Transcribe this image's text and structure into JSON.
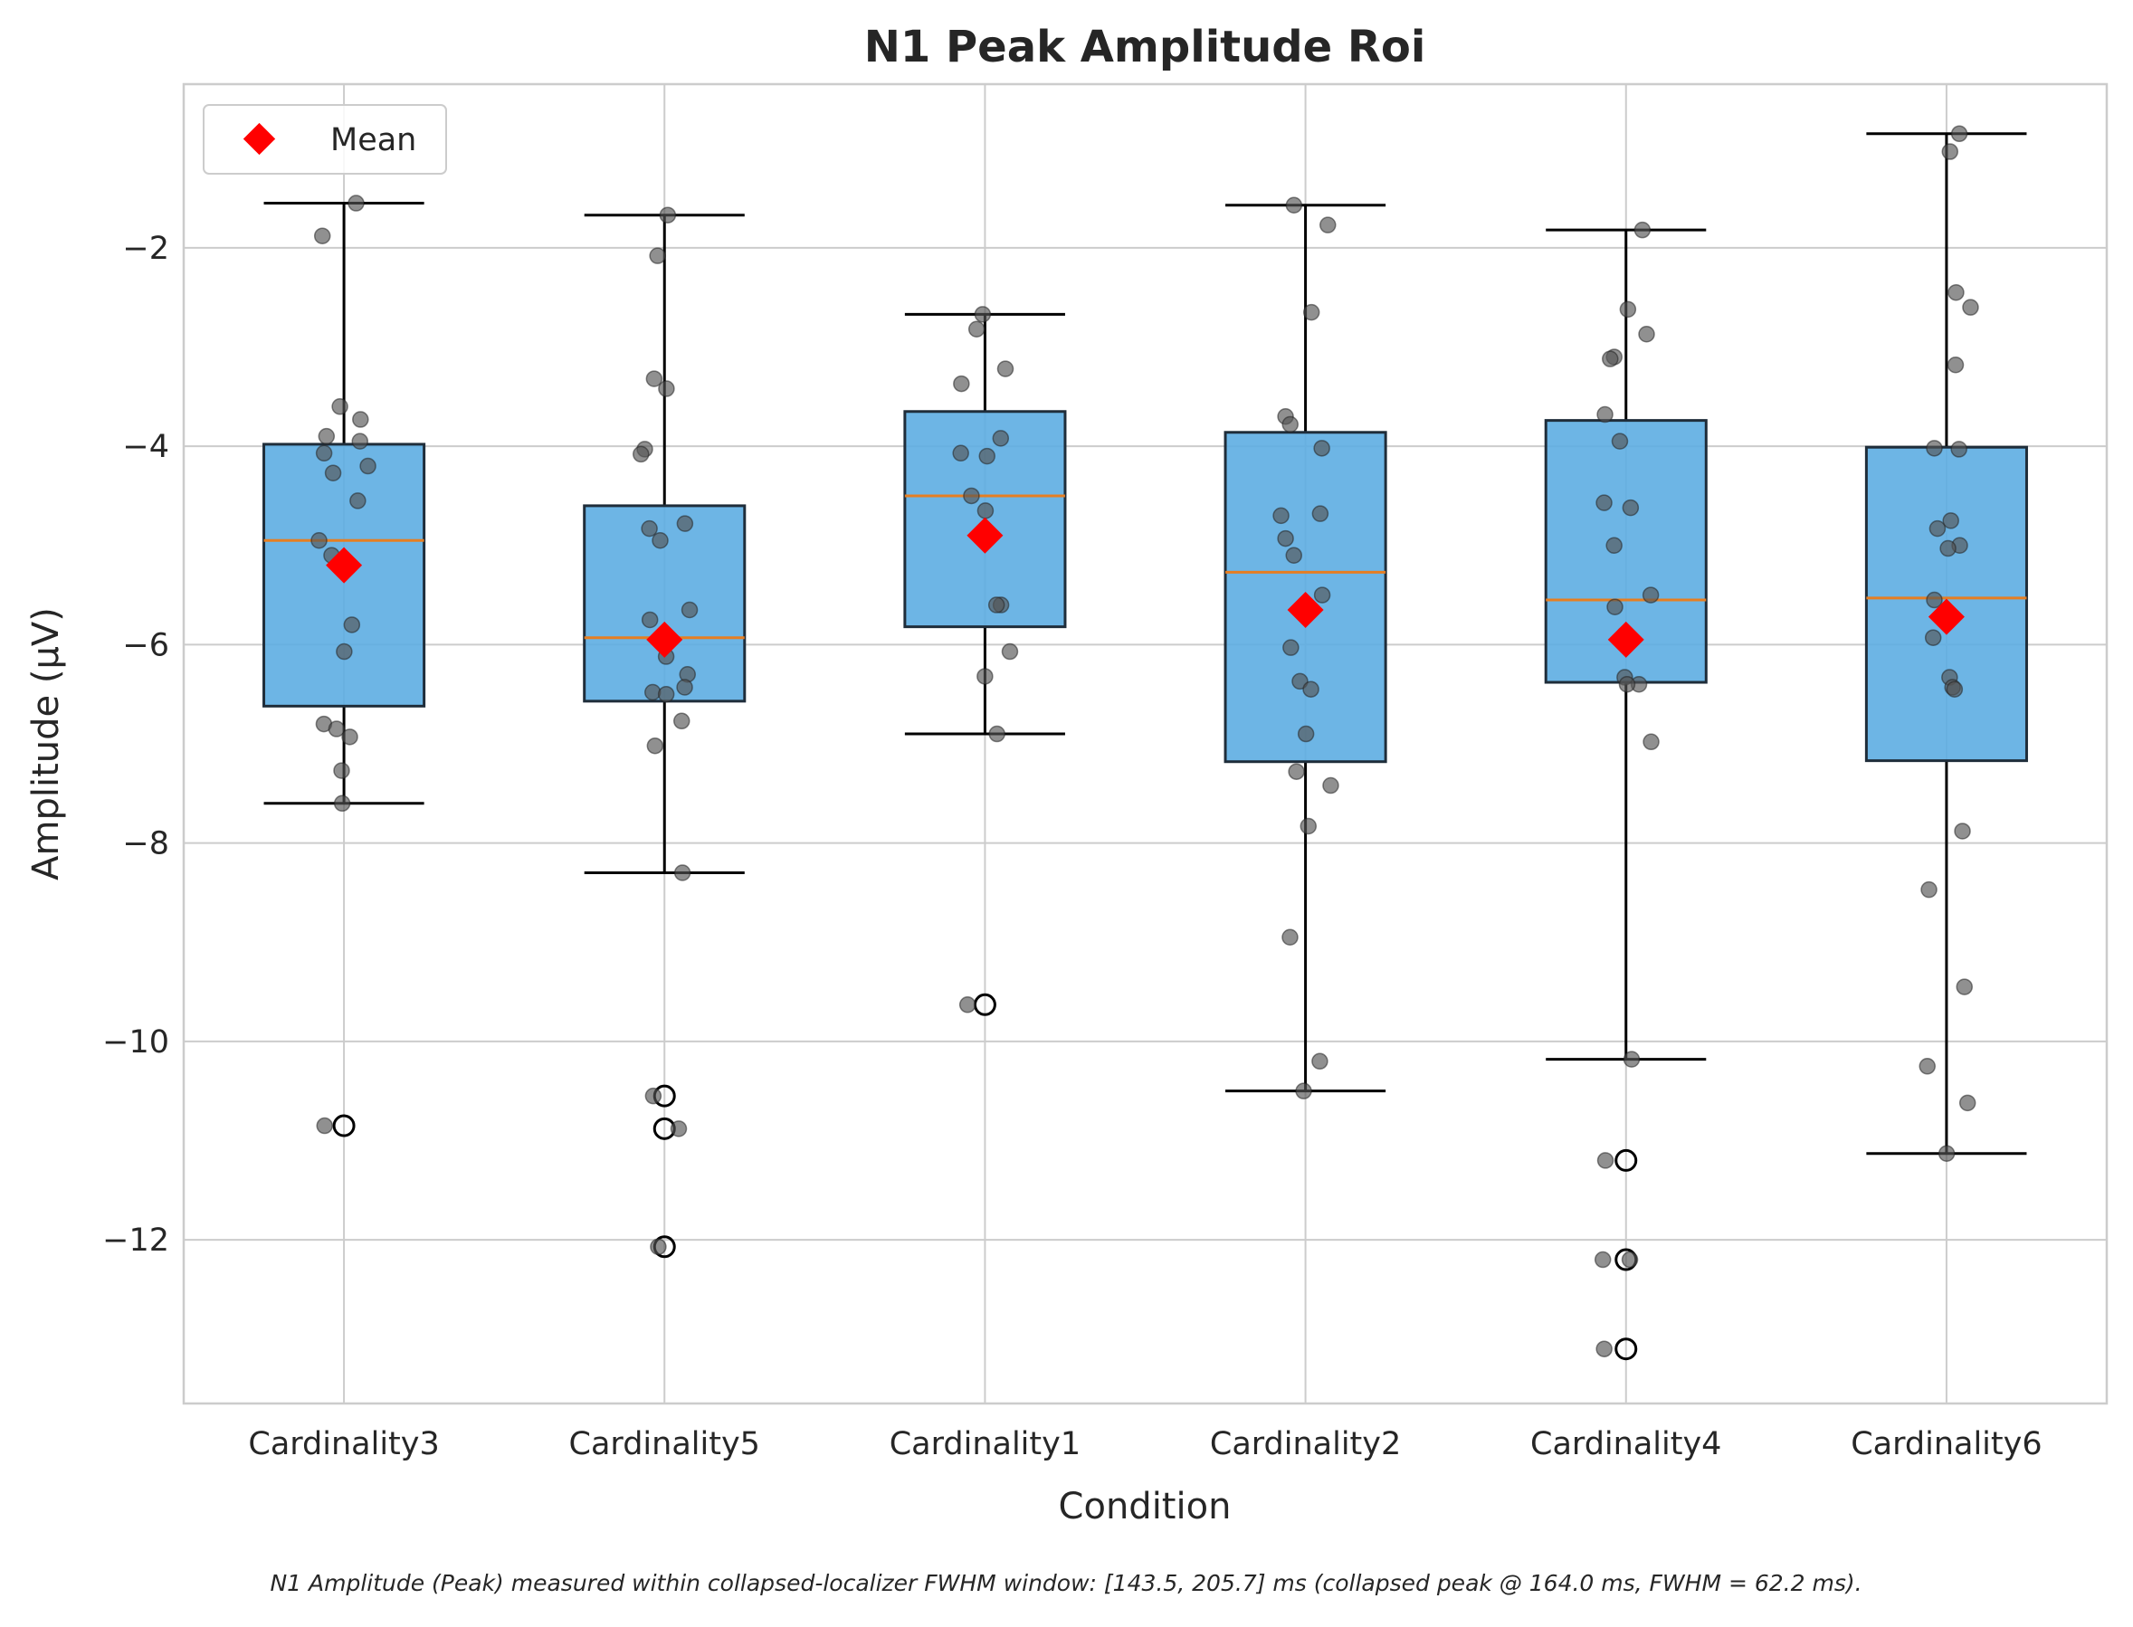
{
  "chart_data": {
    "type": "box",
    "title": "N1 Peak Amplitude Roi",
    "xlabel": "Condition",
    "ylabel": "Amplitude (µV)",
    "caption": "N1 Amplitude (Peak) measured within collapsed-localizer FWHM window: [143.5, 205.7] ms (collapsed peak @ 164.0 ms, FWHM = 62.2 ms).",
    "ylim": [
      -13.65,
      -0.35
    ],
    "yticks": [
      -2,
      -4,
      -6,
      -8,
      -10,
      -12
    ],
    "ytick_labels": [
      "−2",
      "−4",
      "−6",
      "−8",
      "−10",
      "−12"
    ],
    "grid": true,
    "legend": {
      "placement": "top-left",
      "entries": [
        "Mean"
      ]
    },
    "colors": {
      "box": "#5dade2",
      "median": "#e67e22",
      "mean": "#ff0000",
      "points": "#555555",
      "grid": "#cccccc",
      "axes": "#cccccc"
    },
    "categories": [
      "Cardinality3",
      "Cardinality5",
      "Cardinality1",
      "Cardinality2",
      "Cardinality4",
      "Cardinality6"
    ],
    "boxes": [
      {
        "q1": -6.62,
        "median": -4.95,
        "q3": -3.98,
        "whisker_low": -7.6,
        "whisker_high": -1.55,
        "mean": -5.2,
        "outliers": [
          -10.85
        ],
        "points": [
          -1.55,
          -1.88,
          -3.6,
          -3.73,
          -3.9,
          -3.95,
          -4.07,
          -4.2,
          -4.27,
          -4.55,
          -4.95,
          -5.1,
          -5.8,
          -6.07,
          -6.8,
          -6.85,
          -6.93,
          -7.27,
          -7.6,
          -10.85
        ]
      },
      {
        "q1": -6.57,
        "median": -5.93,
        "q3": -4.6,
        "whisker_low": -8.3,
        "whisker_high": -1.67,
        "mean": -5.95,
        "outliers": [
          -10.55,
          -10.88,
          -12.07
        ],
        "points": [
          -1.67,
          -2.08,
          -3.32,
          -3.42,
          -4.03,
          -4.08,
          -4.78,
          -4.83,
          -4.95,
          -5.65,
          -5.75,
          -6.12,
          -6.3,
          -6.43,
          -6.48,
          -6.5,
          -6.77,
          -7.02,
          -8.3,
          -10.55,
          -10.88,
          -12.07
        ]
      },
      {
        "q1": -5.82,
        "median": -4.5,
        "q3": -3.65,
        "whisker_low": -6.9,
        "whisker_high": -2.67,
        "mean": -4.9,
        "outliers": [
          -9.63
        ],
        "points": [
          -2.67,
          -2.82,
          -3.22,
          -3.37,
          -3.92,
          -4.07,
          -4.1,
          -4.5,
          -4.65,
          -5.6,
          -5.6,
          -6.07,
          -6.32,
          -6.9,
          -9.63
        ]
      },
      {
        "q1": -7.18,
        "median": -5.27,
        "q3": -3.86,
        "whisker_low": -10.5,
        "whisker_high": -1.57,
        "mean": -5.65,
        "outliers": [],
        "points": [
          -1.57,
          -1.77,
          -2.65,
          -3.7,
          -3.78,
          -4.02,
          -4.68,
          -4.7,
          -4.93,
          -5.1,
          -5.5,
          -6.03,
          -6.37,
          -6.45,
          -6.9,
          -7.28,
          -7.42,
          -7.83,
          -8.95,
          -10.2,
          -10.5
        ]
      },
      {
        "q1": -6.38,
        "median": -5.55,
        "q3": -3.74,
        "whisker_low": -10.18,
        "whisker_high": -1.82,
        "mean": -5.95,
        "outliers": [
          -11.2,
          -12.2,
          -13.1
        ],
        "points": [
          -1.82,
          -2.62,
          -2.87,
          -3.1,
          -3.12,
          -3.68,
          -3.95,
          -4.57,
          -4.62,
          -5.0,
          -5.5,
          -5.62,
          -5.9,
          -6.33,
          -6.4,
          -6.4,
          -6.98,
          -10.18,
          -11.2,
          -12.2,
          -12.2,
          -13.1
        ]
      },
      {
        "q1": -7.17,
        "median": -5.53,
        "q3": -4.01,
        "whisker_low": -11.13,
        "whisker_high": -0.85,
        "mean": -5.72,
        "outliers": [],
        "points": [
          -0.85,
          -1.03,
          -2.45,
          -2.6,
          -3.18,
          -4.02,
          -4.03,
          -4.75,
          -4.83,
          -5.0,
          -5.03,
          -5.55,
          -5.93,
          -6.33,
          -6.43,
          -6.45,
          -7.88,
          -8.47,
          -9.45,
          -10.25,
          -10.62,
          -11.13
        ]
      }
    ]
  }
}
